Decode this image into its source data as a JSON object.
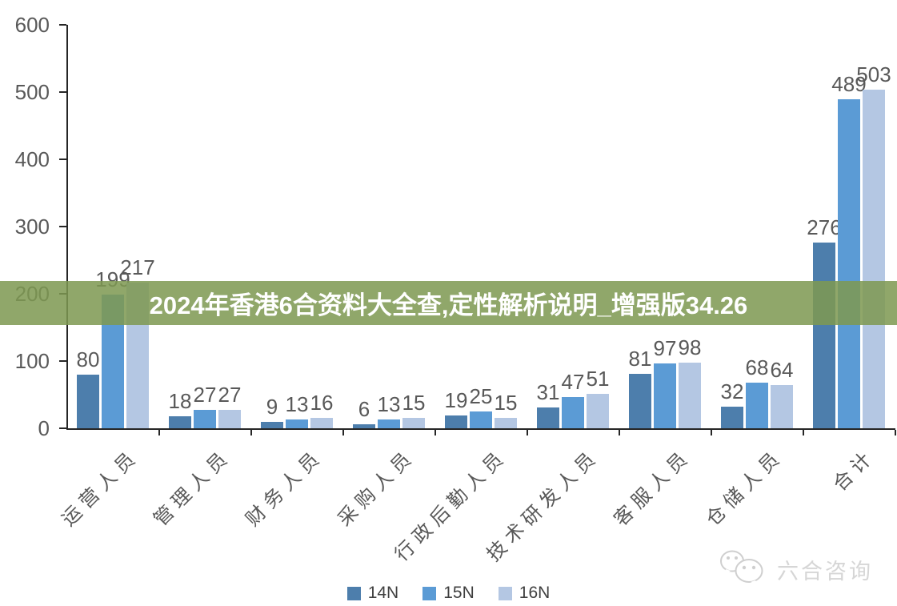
{
  "banner": {
    "text": "2024年香港6合资料大全查,定性解析说明_增强版34.26",
    "bg_color": "#7E9951",
    "bg_opacity": 0.86,
    "text_color": "#FFFFFF"
  },
  "watermark": {
    "brand": "六合咨询",
    "icon": "wechat-bubbles-icon"
  },
  "chart_data": {
    "type": "bar",
    "title": "",
    "categories": [
      "运营人员",
      "管理人员",
      "财务人员",
      "采购人员",
      "行政后勤人员",
      "技术研发人员",
      "客服人员",
      "仓储人员",
      "合计"
    ],
    "series": [
      {
        "name": "14N",
        "color": "#4D7EAC",
        "values": [
          80,
          18,
          9,
          6,
          19,
          31,
          81,
          32,
          276
        ]
      },
      {
        "name": "15N",
        "color": "#5B9BD5",
        "values": [
          199,
          27,
          13,
          13,
          25,
          47,
          97,
          68,
          489
        ]
      },
      {
        "name": "16N",
        "color": "#B4C7E3",
        "values": [
          217,
          27,
          16,
          15,
          15,
          51,
          98,
          64,
          503
        ]
      }
    ],
    "xlabel": "",
    "ylabel": "",
    "ylim": [
      0,
      600
    ],
    "yticks": [
      0,
      100,
      200,
      300,
      400,
      500,
      600
    ],
    "grid": false,
    "legend_position": "bottom",
    "value_labels": true,
    "axis_color": "#262626",
    "label_color": "#595959"
  }
}
